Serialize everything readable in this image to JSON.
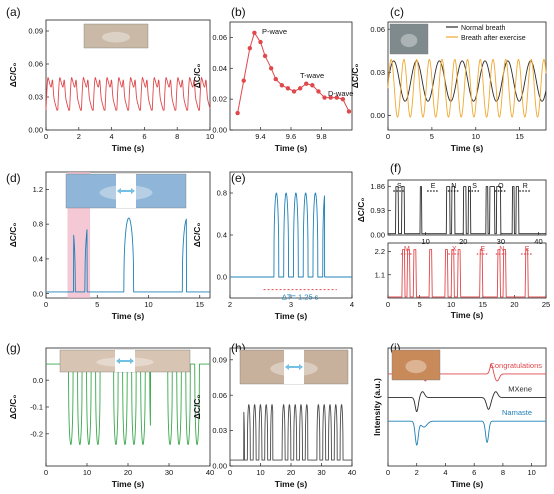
{
  "colors": {
    "red": "#e0484c",
    "blue": "#1f80b8",
    "green": "#3aa84d",
    "gray": "#4a4a4a",
    "orange": "#f0a830",
    "dark": "#2b2b2b",
    "pink_band": "#f2b6c8"
  },
  "chart_data": [
    {
      "id": "a",
      "panel_label": "(a)",
      "type": "line",
      "xlabel": "Time (s)",
      "ylabel": "ΔC/C₀",
      "xlim": [
        0,
        10
      ],
      "ylim": [
        0,
        0.1
      ],
      "xticks": [
        "0",
        "2",
        "4",
        "6",
        "8",
        "10"
      ],
      "yticks": [
        "0.00",
        "0.03",
        "0.06",
        "0.09"
      ],
      "series": [
        {
          "color": "red",
          "generator": "pulse",
          "period": 0.72,
          "baseline": 0.022,
          "amplitude": 0.035,
          "duration": 10
        }
      ],
      "inset": {
        "icon": "wrist-pulse-photo-icon"
      }
    },
    {
      "id": "b",
      "panel_label": "(b)",
      "type": "line",
      "xlabel": "Time (s)",
      "ylabel": "ΔC/C₀",
      "xlim": [
        9.2,
        10.0
      ],
      "ylim": [
        0,
        0.07
      ],
      "xticks": [
        "9.4",
        "9.6",
        "9.8"
      ],
      "yticks": [
        "0.00",
        "0.02",
        "0.04",
        "0.06"
      ],
      "series": [
        {
          "color": "red",
          "markers": true,
          "x": [
            9.25,
            9.29,
            9.33,
            9.36,
            9.4,
            9.43,
            9.47,
            9.5,
            9.54,
            9.58,
            9.62,
            9.66,
            9.7,
            9.74,
            9.78,
            9.82,
            9.86,
            9.9,
            9.94,
            9.98
          ],
          "y": [
            0.011,
            0.032,
            0.053,
            0.063,
            0.057,
            0.048,
            0.04,
            0.033,
            0.029,
            0.027,
            0.025,
            0.027,
            0.03,
            0.029,
            0.025,
            0.021,
            0.021,
            0.021,
            0.02,
            0.012
          ]
        }
      ],
      "annotations": [
        "P-wave",
        "T-wave",
        "D-wave"
      ]
    },
    {
      "id": "c",
      "panel_label": "(c)",
      "type": "line",
      "xlabel": "Time (s)",
      "ylabel": "ΔC/C₀",
      "xlim": [
        0,
        18
      ],
      "ylim": [
        -0.01,
        0.065
      ],
      "xticks": [
        "0",
        "5",
        "10",
        "15"
      ],
      "yticks": [
        "0.00",
        "0.03",
        "0.06"
      ],
      "series": [
        {
          "name": "Normal breath",
          "color": "dark",
          "generator": "sine",
          "period": 2.6,
          "baseline": 0.024,
          "amplitude": 0.014,
          "duration": 18
        },
        {
          "name": "Breath after exercise",
          "color": "orange",
          "generator": "sine",
          "period": 1.45,
          "baseline": 0.019,
          "amplitude": 0.02,
          "duration": 18
        }
      ],
      "inset": {
        "icon": "face-mask-photo-icon"
      }
    },
    {
      "id": "d",
      "panel_label": "(d)",
      "type": "line",
      "xlabel": "Time (s)",
      "ylabel": "ΔC/C₀",
      "xlim": [
        0,
        16
      ],
      "ylim": [
        -0.05,
        1.4
      ],
      "xticks": [
        "0",
        "5",
        "10",
        "15"
      ],
      "yticks": [
        "0.0",
        "0.4",
        "0.8",
        "1.2"
      ],
      "highlight": [
        2.1,
        4.3
      ],
      "series": [
        {
          "color": "blue",
          "generator": "bursts",
          "bursts": [
            [
              2.7,
              4.0
            ],
            [
              7.6,
              8.6
            ],
            [
              12.7,
              13.7
            ]
          ],
          "baseline": 0.02,
          "amplitude": 0.85,
          "duration": 16
        }
      ],
      "inset": {
        "icon": "finger-bend-photo-icon"
      }
    },
    {
      "id": "e",
      "panel_label": "(e)",
      "type": "line",
      "xlabel": "Time (s)",
      "ylabel": "ΔC/C₀",
      "xlim": [
        2,
        4
      ],
      "ylim": [
        -0.2,
        1.0
      ],
      "xticks": [
        "2",
        "3",
        "4"
      ],
      "yticks": [
        "0.0",
        "0.4",
        "0.8"
      ],
      "series": [
        {
          "color": "blue",
          "generator": "bursts",
          "bursts": [
            [
              2.65,
              3.55
            ]
          ],
          "baseline": 0.0,
          "amplitude": 0.8,
          "duration": 4,
          "start": 2
        }
      ],
      "annotations": [
        "ΔT= 1.25 s"
      ]
    },
    {
      "id": "f",
      "panel_label": "(f)",
      "type": "line",
      "xlabel": "Time (s)",
      "ylabel": "ΔC/C₀",
      "subplots": [
        {
          "color": "dark",
          "xlim": [
            0,
            42
          ],
          "ylim": [
            0,
            2.1
          ],
          "xticks": [
            "10",
            "20",
            "30",
            "40"
          ],
          "yticks": [
            "0.00",
            "0.93",
            "1.86"
          ],
          "letters": [
            "S",
            "E",
            "N",
            "S",
            "O",
            "R"
          ],
          "letter_x": [
            3,
            12,
            17.5,
            23,
            30,
            36.5
          ],
          "generator": "steps",
          "pulses": [
            [
              2,
              2.8
            ],
            [
              3.6,
              4.4
            ],
            [
              8.5,
              9
            ],
            [
              15.5,
              16.5
            ],
            [
              16.9,
              17.8
            ],
            [
              20,
              20.8
            ],
            [
              21.3,
              22
            ],
            [
              26,
              26.6
            ],
            [
              27,
              28.4
            ],
            [
              28.8,
              30
            ],
            [
              33,
              33.6
            ],
            [
              34,
              34.8
            ]
          ]
        },
        {
          "color": "red",
          "xlim": [
            0,
            25
          ],
          "ylim": [
            0,
            2.6
          ],
          "xticks": [
            "0",
            "5",
            "10",
            "15",
            "20",
            "25"
          ],
          "yticks": [
            "1.1",
            "2.2"
          ],
          "letters": [
            "M",
            "X",
            "E",
            "N",
            "E"
          ],
          "letter_x": [
            3,
            10.5,
            15,
            18,
            22
          ],
          "generator": "steps",
          "pulses": [
            [
              2.2,
              2.7
            ],
            [
              3,
              3.5
            ],
            [
              4,
              4.5
            ],
            [
              6.5,
              7
            ],
            [
              9,
              9.5
            ],
            [
              10,
              10.5
            ],
            [
              11,
              11.5
            ],
            [
              14.5,
              15
            ],
            [
              17.3,
              17.8
            ],
            [
              18.2,
              18.7
            ],
            [
              21.7,
              22.2
            ]
          ]
        }
      ]
    },
    {
      "id": "g",
      "panel_label": "(g)",
      "type": "line",
      "xlabel": "Time (s)",
      "ylabel": "ΔC/C₀",
      "xlim": [
        0,
        40
      ],
      "ylim": [
        -0.32,
        0.12
      ],
      "xticks": [
        "0",
        "10",
        "20",
        "30",
        "40"
      ],
      "yticks": [
        "-0.2",
        "-0.1",
        "0.0"
      ],
      "series": [
        {
          "color": "green",
          "generator": "bursts_neg",
          "bursts": [
            [
              4.5,
              13.5
            ],
            [
              16.5,
              25.5
            ],
            [
              29.5,
              37.5
            ]
          ],
          "baseline": 0.06,
          "amplitude": 0.3,
          "duration": 40
        }
      ],
      "inset": {
        "icon": "wrist-bend-photo-icon"
      }
    },
    {
      "id": "h",
      "panel_label": "(h)",
      "type": "line",
      "xlabel": "Time (s)",
      "ylabel": "ΔC/C₀",
      "xlim": [
        0,
        40
      ],
      "ylim": [
        0,
        0.1
      ],
      "xticks": [
        "0",
        "10",
        "20",
        "30",
        "40"
      ],
      "yticks": [
        "0.00",
        "0.03",
        "0.06",
        "0.09"
      ],
      "series": [
        {
          "color": "gray",
          "generator": "bursts",
          "bursts": [
            [
              4.5,
              14
            ],
            [
              16.5,
              25.5
            ],
            [
              28.5,
              37.5
            ]
          ],
          "baseline": 0.005,
          "amplitude": 0.047,
          "duration": 40
        }
      ],
      "inset": {
        "icon": "eye-blink-photo-icon"
      }
    },
    {
      "id": "i",
      "panel_label": "(i)",
      "type": "line",
      "xlabel": "Time (s)",
      "ylabel": "Intensity (a.u.)",
      "xlim": [
        0,
        11
      ],
      "ylim": [
        0,
        1
      ],
      "xticks": [
        "0",
        "2",
        "4",
        "6",
        "8",
        "10"
      ],
      "yticks": [],
      "series": [
        {
          "name": "Congratulations",
          "color": "red",
          "offset": 0.78
        },
        {
          "name": "MXene",
          "color": "dark",
          "offset": 0.58
        },
        {
          "name": "Namaste",
          "color": "blue",
          "offset": 0.38
        }
      ],
      "inset": {
        "icon": "throat-sensor-photo-icon"
      }
    }
  ]
}
